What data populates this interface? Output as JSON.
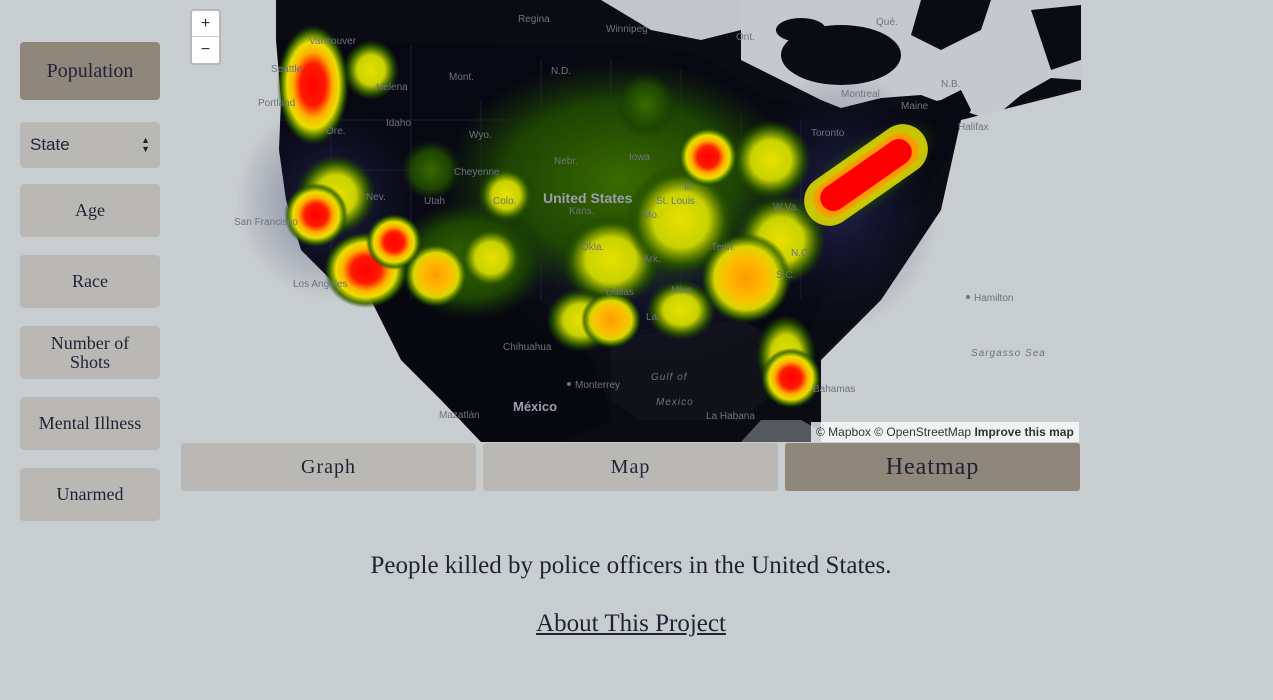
{
  "sidebar": {
    "population_label": "Population",
    "state_select": {
      "value": "State"
    },
    "age_label": "Age",
    "race_label": "Race",
    "shots_label": "Number of Shots",
    "mental_label": "Mental Illness",
    "unarmed_label": "Unarmed"
  },
  "map": {
    "zoom_in": "+",
    "zoom_out": "−",
    "attribution": {
      "mapbox": "© Mapbox",
      "osm": "© OpenStreetMap",
      "improve": "Improve this map"
    },
    "labels": {
      "regina": "Regina",
      "winnipeg": "Winnipeg",
      "ont": "Ont.",
      "que": "Qué.",
      "vancouver": "Vancouver",
      "seattle": "Seattle",
      "portland": "Portland",
      "helena": "Helena",
      "mont": "Mont.",
      "nd": "N.D.",
      "idaho": "Idaho",
      "ore": "Ore.",
      "wyo": "Wyo.",
      "nebr": "Nebr.",
      "iowa": "Iowa",
      "ill": "Ill.",
      "cheyenne": "Cheyenne",
      "utah": "Utah",
      "colo": "Colo.",
      "nev": "Nev.",
      "san_francisco": "San Francisco",
      "los_angeles": "Los Angeles",
      "united_states": "United States",
      "kans": "Kans.",
      "mo": "Mo.",
      "st_louis": "St. Louis",
      "okla": "Okla.",
      "ark": "Ark.",
      "tenn": "Tenn.",
      "dallas": "Dallas",
      "miss": "Miss.",
      "la": "La.",
      "nc": "N.C.",
      "sc": "S.C.",
      "wva": "W.Va.",
      "toronto": "Toronto",
      "montreal": "Montreal",
      "maine": "Maine",
      "nb": "N.B.",
      "halifax": "Halifax",
      "hamilton": "Hamilton",
      "sargasso": "Sargasso Sea",
      "gulf": "Gulf of",
      "mexico_gulf": "Mexico",
      "chihuahua": "Chihuahua",
      "monterrey": "Monterrey",
      "mexico": "México",
      "mazatlan": "Mazatlán",
      "la_habana": "La Habana",
      "bahamas": "Bahamas"
    }
  },
  "tabs": {
    "graph": "Graph",
    "map": "Map",
    "heatmap": "Heatmap"
  },
  "caption": "People killed by police officers in the United States.",
  "about_link": "About This Project",
  "colors": {
    "background": "#c8cdd0",
    "button": "#b9b8b5",
    "button_active": "#8f867c",
    "text": "#1f2333",
    "map_bg": "#0b0b14"
  }
}
